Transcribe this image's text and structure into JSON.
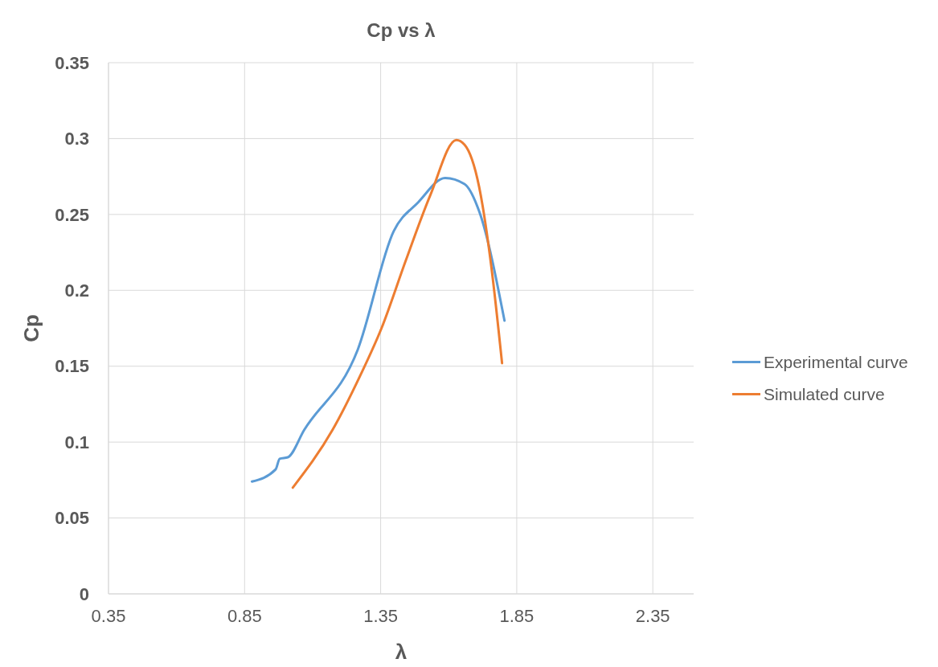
{
  "chart_data": {
    "type": "line",
    "title": "Cp vs λ",
    "xlabel": "λ",
    "ylabel": "Cp",
    "xlim": [
      0.35,
      2.5
    ],
    "xticks": [
      0.35,
      0.85,
      1.35,
      1.85,
      2.35
    ],
    "ylim": [
      0,
      0.35
    ],
    "yticks": [
      0,
      0.05,
      0.1,
      0.15,
      0.2,
      0.25,
      0.3,
      0.35
    ],
    "grid": true,
    "legend": "right",
    "marker": "none",
    "line_style": "solid",
    "series": [
      {
        "name": "Experimental curve",
        "color": "#5b9bd5",
        "x": [
          0.877,
          0.964,
          0.979,
          1.009,
          1.069,
          1.266,
          1.398,
          1.488,
          1.587,
          1.658,
          1.712,
          1.805
        ],
        "values": [
          0.074,
          0.082,
          0.089,
          0.09,
          0.108,
          0.161,
          0.239,
          0.258,
          0.274,
          0.27,
          0.252,
          0.18
        ]
      },
      {
        "name": "Simulated curve",
        "color": "#ed7d31",
        "x": [
          1.027,
          1.173,
          1.278,
          1.353,
          1.443,
          1.533,
          1.628,
          1.658,
          1.712,
          1.757,
          1.796
        ],
        "values": [
          0.07,
          0.108,
          0.145,
          0.175,
          0.22,
          0.263,
          0.299,
          0.296,
          0.268,
          0.215,
          0.152
        ]
      }
    ]
  }
}
